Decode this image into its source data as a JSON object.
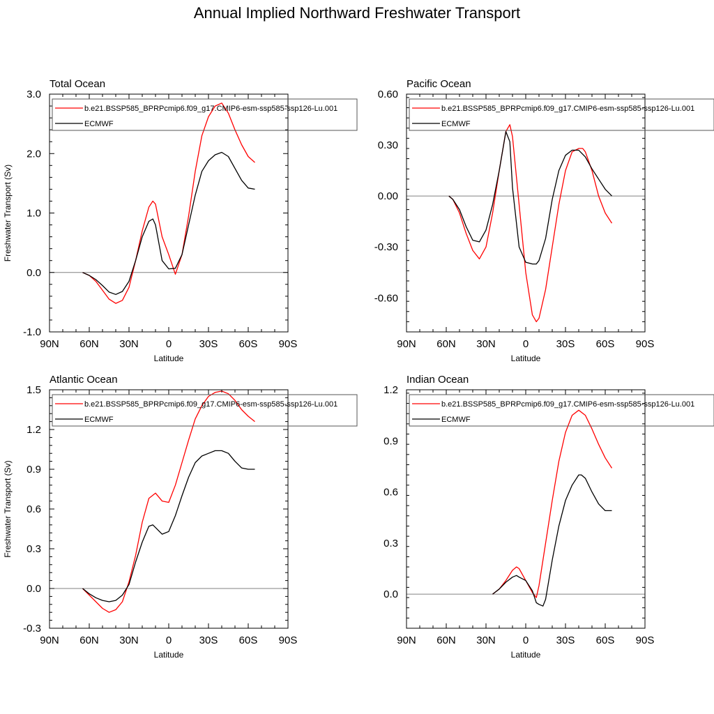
{
  "title": "Annual Implied Northward Freshwater Transport",
  "colors": {
    "model": "#ff0000",
    "obs": "#000000",
    "zero": "#808080"
  },
  "chart_data": [
    {
      "type": "line",
      "title": "Total Ocean",
      "xlabel": "Latitude",
      "ylabel": "Freshwater Transport (Sv)",
      "xticks": [
        -90,
        -60,
        -30,
        0,
        30,
        60,
        90
      ],
      "xticklabels": [
        "90N",
        "60N",
        "30N",
        "0",
        "30S",
        "60S",
        "90S"
      ],
      "ylim": [
        -1.0,
        3.0
      ],
      "yticks": [
        -1.0,
        0.0,
        1.0,
        2.0,
        3.0
      ],
      "yticklabels": [
        "-1.0",
        "0.0",
        "1.0",
        "2.0",
        "3.0"
      ],
      "legend": [
        "b.e21.BSSP585_BPRPcmip6.f09_g17.CMIP6-esm-ssp585-ssp126-Lu.001",
        "ECMWF"
      ],
      "series": [
        {
          "name": "b.e21.BSSP585_BPRPcmip6.f09_g17.CMIP6-esm-ssp585-ssp126-Lu.001",
          "color": "#ff0000",
          "x": [
            -65,
            -60,
            -55,
            -50,
            -45,
            -40,
            -35,
            -30,
            -25,
            -20,
            -15,
            -12,
            -10,
            -5,
            0,
            5,
            10,
            15,
            20,
            25,
            30,
            35,
            40,
            45,
            50,
            55,
            60,
            65
          ],
          "y": [
            0.0,
            -0.05,
            -0.15,
            -0.3,
            -0.45,
            -0.52,
            -0.47,
            -0.25,
            0.2,
            0.7,
            1.1,
            1.2,
            1.15,
            0.6,
            0.3,
            -0.03,
            0.3,
            0.95,
            1.7,
            2.3,
            2.62,
            2.8,
            2.85,
            2.68,
            2.4,
            2.15,
            1.95,
            1.85
          ]
        },
        {
          "name": "ECMWF",
          "color": "#000000",
          "x": [
            -65,
            -60,
            -55,
            -50,
            -45,
            -40,
            -35,
            -30,
            -25,
            -20,
            -15,
            -12,
            -10,
            -5,
            0,
            5,
            10,
            15,
            20,
            25,
            30,
            35,
            40,
            45,
            50,
            55,
            60,
            65
          ],
          "y": [
            0.0,
            -0.05,
            -0.12,
            -0.22,
            -0.33,
            -0.37,
            -0.32,
            -0.15,
            0.2,
            0.6,
            0.86,
            0.9,
            0.8,
            0.2,
            0.06,
            0.07,
            0.3,
            0.8,
            1.3,
            1.7,
            1.88,
            1.98,
            2.02,
            1.95,
            1.75,
            1.55,
            1.42,
            1.4
          ]
        }
      ]
    },
    {
      "type": "line",
      "title": "Pacific Ocean",
      "xlabel": "Latitude",
      "ylabel": "",
      "xticks": [
        -90,
        -60,
        -30,
        0,
        30,
        60,
        90
      ],
      "xticklabels": [
        "90N",
        "60N",
        "30N",
        "0",
        "30S",
        "60S",
        "90S"
      ],
      "ylim": [
        -0.8,
        0.6
      ],
      "yticks": [
        -0.6,
        -0.3,
        0.0,
        0.3,
        0.6
      ],
      "yticklabels": [
        "-0.60",
        "-0.30",
        "0.00",
        "0.30",
        "0.60"
      ],
      "legend": [
        "b.e21.BSSP585_BPRPcmip6.f09_g17.CMIP6-esm-ssp585-ssp126-Lu.001",
        "ECMWF"
      ],
      "series": [
        {
          "name": "b.e21.BSSP585_BPRPcmip6.f09_g17.CMIP6-esm-ssp585-ssp126-Lu.001",
          "color": "#ff0000",
          "x": [
            -58,
            -55,
            -50,
            -45,
            -40,
            -35,
            -30,
            -25,
            -20,
            -15,
            -12,
            -10,
            -5,
            0,
            5,
            8,
            10,
            15,
            20,
            25,
            30,
            35,
            40,
            43,
            45,
            50,
            55,
            60,
            65
          ],
          "y": [
            0.0,
            -0.02,
            -0.1,
            -0.22,
            -0.32,
            -0.37,
            -0.3,
            -0.1,
            0.15,
            0.38,
            0.42,
            0.35,
            -0.05,
            -0.45,
            -0.7,
            -0.74,
            -0.72,
            -0.55,
            -0.3,
            -0.05,
            0.15,
            0.26,
            0.28,
            0.28,
            0.26,
            0.15,
            0.0,
            -0.1,
            -0.16
          ]
        },
        {
          "name": "ECMWF",
          "color": "#000000",
          "x": [
            -58,
            -55,
            -50,
            -45,
            -40,
            -35,
            -30,
            -25,
            -20,
            -15,
            -12,
            -10,
            -5,
            0,
            5,
            8,
            10,
            15,
            20,
            25,
            30,
            35,
            40,
            45,
            50,
            55,
            60,
            65
          ],
          "y": [
            0.0,
            -0.02,
            -0.08,
            -0.18,
            -0.26,
            -0.27,
            -0.2,
            -0.05,
            0.15,
            0.38,
            0.32,
            0.05,
            -0.3,
            -0.39,
            -0.4,
            -0.4,
            -0.38,
            -0.25,
            -0.02,
            0.15,
            0.24,
            0.27,
            0.27,
            0.23,
            0.16,
            0.1,
            0.04,
            0.0
          ]
        }
      ]
    },
    {
      "type": "line",
      "title": "Atlantic Ocean",
      "xlabel": "Latitude",
      "ylabel": "Freshwater Transport (Sv)",
      "xticks": [
        -90,
        -60,
        -30,
        0,
        30,
        60,
        90
      ],
      "xticklabels": [
        "90N",
        "60N",
        "30N",
        "0",
        "30S",
        "60S",
        "90S"
      ],
      "ylim": [
        -0.3,
        1.5
      ],
      "yticks": [
        -0.3,
        0.0,
        0.3,
        0.6,
        0.9,
        1.2,
        1.5
      ],
      "yticklabels": [
        "-0.3",
        "0.0",
        "0.3",
        "0.6",
        "0.9",
        "1.2",
        "1.5"
      ],
      "legend": [
        "b.e21.BSSP585_BPRPcmip6.f09_g17.CMIP6-esm-ssp585-ssp126-Lu.001",
        "ECMWF"
      ],
      "series": [
        {
          "name": "b.e21.BSSP585_BPRPcmip6.f09_g17.CMIP6-esm-ssp585-ssp126-Lu.001",
          "color": "#ff0000",
          "x": [
            -65,
            -60,
            -55,
            -50,
            -45,
            -40,
            -35,
            -30,
            -25,
            -20,
            -15,
            -10,
            -5,
            0,
            5,
            10,
            15,
            20,
            25,
            30,
            35,
            40,
            45,
            50,
            55,
            60,
            65
          ],
          "y": [
            0.0,
            -0.05,
            -0.1,
            -0.15,
            -0.18,
            -0.16,
            -0.1,
            0.05,
            0.25,
            0.5,
            0.68,
            0.72,
            0.66,
            0.65,
            0.78,
            0.95,
            1.12,
            1.28,
            1.38,
            1.45,
            1.48,
            1.49,
            1.47,
            1.42,
            1.35,
            1.3,
            1.26
          ]
        },
        {
          "name": "ECMWF",
          "color": "#000000",
          "x": [
            -65,
            -60,
            -55,
            -50,
            -45,
            -40,
            -35,
            -30,
            -25,
            -20,
            -15,
            -12,
            -10,
            -5,
            0,
            5,
            10,
            15,
            20,
            25,
            30,
            35,
            40,
            45,
            50,
            55,
            60,
            65
          ],
          "y": [
            0.0,
            -0.04,
            -0.07,
            -0.09,
            -0.1,
            -0.09,
            -0.05,
            0.03,
            0.2,
            0.35,
            0.47,
            0.48,
            0.46,
            0.41,
            0.43,
            0.55,
            0.7,
            0.84,
            0.95,
            1.0,
            1.02,
            1.04,
            1.04,
            1.02,
            0.96,
            0.91,
            0.9,
            0.9
          ]
        }
      ]
    },
    {
      "type": "line",
      "title": "Indian Ocean",
      "xlabel": "Latitude",
      "ylabel": "",
      "xticks": [
        -90,
        -60,
        -30,
        0,
        30,
        60,
        90
      ],
      "xticklabels": [
        "90N",
        "60N",
        "30N",
        "0",
        "30S",
        "60S",
        "90S"
      ],
      "ylim": [
        -0.2,
        1.2
      ],
      "yticks": [
        0.0,
        0.3,
        0.6,
        0.9,
        1.2
      ],
      "yticklabels": [
        "0.0",
        "0.3",
        "0.6",
        "0.9",
        "1.2"
      ],
      "legend": [
        "b.e21.BSSP585_BPRPcmip6.f09_g17.CMIP6-esm-ssp585-ssp126-Lu.001",
        "ECMWF"
      ],
      "series": [
        {
          "name": "b.e21.BSSP585_BPRPcmip6.f09_g17.CMIP6-esm-ssp585-ssp126-Lu.001",
          "color": "#ff0000",
          "x": [
            -25,
            -20,
            -15,
            -10,
            -7,
            -5,
            0,
            5,
            8,
            10,
            15,
            20,
            25,
            30,
            35,
            40,
            45,
            50,
            55,
            60,
            65
          ],
          "y": [
            0.0,
            0.03,
            0.08,
            0.14,
            0.16,
            0.15,
            0.08,
            0.01,
            -0.02,
            0.05,
            0.3,
            0.55,
            0.78,
            0.95,
            1.05,
            1.08,
            1.05,
            0.97,
            0.88,
            0.8,
            0.74
          ]
        },
        {
          "name": "ECMWF",
          "color": "#000000",
          "x": [
            -25,
            -20,
            -15,
            -10,
            -7,
            -5,
            0,
            5,
            8,
            10,
            13,
            15,
            20,
            25,
            30,
            35,
            40,
            42,
            45,
            50,
            55,
            60,
            65
          ],
          "y": [
            0.0,
            0.03,
            0.07,
            0.1,
            0.11,
            0.1,
            0.08,
            0.02,
            -0.05,
            -0.06,
            -0.07,
            -0.03,
            0.2,
            0.4,
            0.55,
            0.64,
            0.7,
            0.7,
            0.68,
            0.6,
            0.53,
            0.49,
            0.49
          ]
        }
      ]
    }
  ]
}
